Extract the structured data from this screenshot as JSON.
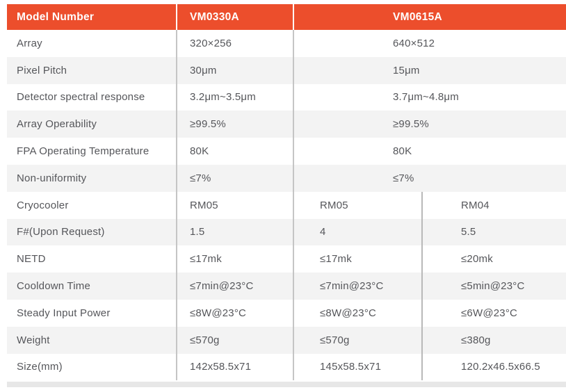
{
  "table": {
    "header": {
      "model_number": "Model Number",
      "model_a": "VM0330A",
      "model_b": "VM0615A"
    },
    "colors": {
      "header_bg": "#ec4e2c",
      "header_text": "#ffffff",
      "stripe_bg": "#f3f3f3",
      "row_bg": "#ffffff",
      "body_text": "#55565a",
      "divider": "#c5c5c5",
      "sub_divider": "#b9b9b9",
      "bottom_bar": "#e7e7e7"
    },
    "rows": [
      {
        "label": "Array",
        "values": [
          "320×256",
          "640×512"
        ]
      },
      {
        "label": "Pixel Pitch",
        "values": [
          "30μm",
          "15μm"
        ]
      },
      {
        "label": "Detector spectral response",
        "values": [
          "3.2μm~3.5μm",
          "3.7μm~4.8μm"
        ]
      },
      {
        "label": "Array Operability",
        "values": [
          "≥99.5%",
          "≥99.5%"
        ]
      },
      {
        "label": "FPA Operating Temperature",
        "values": [
          "80K",
          "80K"
        ]
      },
      {
        "label": "Non-uniformity",
        "values": [
          "≤7%",
          "≤7%"
        ]
      },
      {
        "label": "Cryocooler",
        "values": [
          "RM05",
          "RM05",
          "RM04"
        ]
      },
      {
        "label": "F#(Upon Request)",
        "values": [
          "1.5",
          "4",
          "5.5"
        ]
      },
      {
        "label": "NETD",
        "values": [
          "≤17mk",
          "≤17mk",
          "≤20mk"
        ]
      },
      {
        "label": "Cooldown Time",
        "values": [
          "≤7min@23°C",
          "≤7min@23°C",
          "≤5min@23°C"
        ]
      },
      {
        "label": "Steady Input Power",
        "values": [
          "≤8W@23°C",
          "≤8W@23°C",
          "≤6W@23°C"
        ]
      },
      {
        "label": "Weight",
        "values": [
          "≤570g",
          "≤570g",
          "≤380g"
        ]
      },
      {
        "label": "Size(mm)",
        "values": [
          "142x58.5x71",
          "145x58.5x71",
          "120.2x46.5x66.5"
        ]
      }
    ]
  }
}
